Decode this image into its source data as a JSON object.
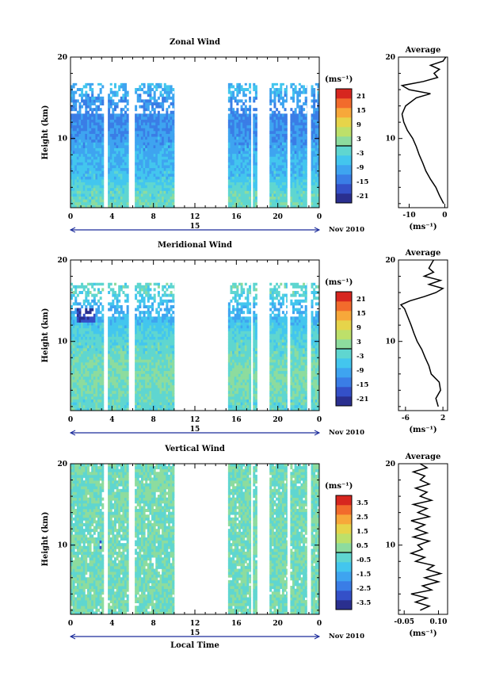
{
  "chart_data": [
    {
      "type": "heatmap",
      "title": "Zonal Wind",
      "ylabel": "Height (km)",
      "x_ticks": [
        "0",
        "4",
        "8",
        "12",
        "16",
        "20",
        "0"
      ],
      "y_ticks": [
        "20",
        "10"
      ],
      "xlim": [
        0,
        24
      ],
      "ylim": [
        1.5,
        20
      ],
      "date_label": "15",
      "date_suffix": "Nov 2010",
      "colorbar": {
        "unit": "(ms⁻¹)",
        "ticks": [
          "21",
          "15",
          "9",
          "3",
          "-3",
          "-9",
          "-15",
          "-21"
        ],
        "range": [
          -24,
          24
        ]
      },
      "observed_hours": [
        [
          0,
          3.2
        ],
        [
          3.6,
          5.6
        ],
        [
          6.2,
          10
        ],
        [
          15.2,
          17.4
        ],
        [
          17.6,
          18
        ],
        [
          19.2,
          20.9
        ],
        [
          21.2,
          22.8
        ],
        [
          23.2,
          24
        ]
      ],
      "data_top_km": 16.8,
      "profile_by_height": {
        "height_km": [
          2,
          3,
          4,
          5,
          6,
          7,
          8,
          9,
          10,
          11,
          12,
          13,
          14,
          15,
          16
        ],
        "u_ms": [
          -1,
          -2,
          -3,
          -6,
          -7,
          -8,
          -9,
          -10,
          -11,
          -12,
          -13,
          -13,
          -12,
          -10,
          -8
        ]
      },
      "average": {
        "title": "Average",
        "xlabel": "(ms⁻¹)",
        "x_ticks": [
          "-10",
          "0"
        ],
        "xlim": [
          -13,
          0.8
        ],
        "y_ticks": [
          "20",
          "10"
        ],
        "height_km": [
          2,
          3,
          4,
          5,
          6,
          7,
          8,
          9,
          10,
          11,
          12,
          13,
          14,
          15,
          15.5,
          16,
          16.5,
          17,
          17.5,
          18,
          18.5,
          19,
          19.5,
          20
        ],
        "values": [
          -0.3,
          -1.5,
          -2.5,
          -4,
          -5.3,
          -6.2,
          -7.2,
          -8,
          -9,
          -10.5,
          -11.5,
          -12,
          -11,
          -8,
          -4,
          -10,
          -12,
          -6,
          -2,
          -3,
          -1.5,
          -4,
          -0.5,
          0.3
        ]
      }
    },
    {
      "type": "heatmap",
      "title": "Meridional Wind",
      "ylabel": "Height (km)",
      "x_ticks": [
        "0",
        "4",
        "8",
        "12",
        "16",
        "20",
        "0"
      ],
      "y_ticks": [
        "20",
        "10"
      ],
      "xlim": [
        0,
        24
      ],
      "ylim": [
        1.5,
        20
      ],
      "date_label": "15",
      "date_suffix": "Nov 2010",
      "colorbar": {
        "unit": "(ms⁻¹)",
        "ticks": [
          "21",
          "15",
          "9",
          "3",
          "-3",
          "-9",
          "-15",
          "-21"
        ],
        "range": [
          -24,
          24
        ]
      },
      "observed_hours": [
        [
          0,
          3.2
        ],
        [
          3.6,
          5.6
        ],
        [
          6.2,
          10
        ],
        [
          15.2,
          17.4
        ],
        [
          17.6,
          18
        ],
        [
          19.2,
          20.9
        ],
        [
          21.2,
          22.8
        ],
        [
          23.2,
          24
        ]
      ],
      "data_top_km": 17.2,
      "profile_by_height": {
        "height_km": [
          2,
          3,
          4,
          5,
          6,
          7,
          8,
          9,
          10,
          11,
          12,
          13,
          14,
          15,
          16
        ],
        "v_ms": [
          -2,
          -1,
          0,
          1,
          1,
          0,
          -1,
          -2,
          -3,
          -4,
          -6,
          -8,
          -9,
          -5,
          -2
        ]
      },
      "average": {
        "title": "Average",
        "xlabel": "(ms⁻¹)",
        "x_ticks": [
          "-6",
          "2"
        ],
        "xlim": [
          -7.5,
          3
        ],
        "y_ticks": [
          "20",
          "10"
        ],
        "height_km": [
          2,
          3,
          4,
          5,
          6,
          7,
          8,
          9,
          10,
          11,
          12,
          13,
          14,
          14.5,
          15,
          15.5,
          16,
          16.5,
          17,
          17.5,
          18,
          18.5,
          19,
          20
        ],
        "values": [
          1,
          0.5,
          1.5,
          1.2,
          -0.5,
          -1,
          -1.8,
          -2.5,
          -3.5,
          -4.2,
          -4.8,
          -5.5,
          -6.2,
          -7,
          -5,
          -2,
          0.5,
          2,
          -1,
          1.5,
          -2,
          0,
          -1,
          0
        ]
      }
    },
    {
      "type": "heatmap",
      "title": "Vertical Wind",
      "ylabel": "Height (km)",
      "xlabel": "Local Time",
      "x_ticks": [
        "0",
        "4",
        "8",
        "12",
        "16",
        "20",
        "0"
      ],
      "y_ticks": [
        "20",
        "10"
      ],
      "xlim": [
        0,
        24
      ],
      "ylim": [
        1.5,
        20
      ],
      "date_label": "15",
      "date_suffix": "Nov 2010",
      "colorbar": {
        "unit": "(ms⁻¹)",
        "ticks": [
          "3.5",
          "2.5",
          "1.5",
          "0.5",
          "-0.5",
          "-1.5",
          "-2.5",
          "-3.5"
        ],
        "range": [
          -4,
          4
        ]
      },
      "observed_hours": [
        [
          0,
          3.2
        ],
        [
          3.6,
          5.6
        ],
        [
          6.2,
          10
        ],
        [
          15.2,
          17.4
        ],
        [
          17.6,
          18
        ],
        [
          19.2,
          20.9
        ],
        [
          21.2,
          22.8
        ],
        [
          23.2,
          24
        ]
      ],
      "data_top_km": 20,
      "average": {
        "title": "Average",
        "xlabel": "(ms⁻¹)",
        "x_ticks": [
          "-0.05",
          "0.10"
        ],
        "xlim": [
          -0.075,
          0.14
        ],
        "y_ticks": [
          "20",
          "10"
        ],
        "height_km": [
          2,
          2.5,
          3,
          3.5,
          4,
          4.5,
          5,
          5.5,
          6,
          6.5,
          7,
          7.5,
          8,
          8.5,
          9,
          9.5,
          10,
          10.5,
          11,
          11.5,
          12,
          12.5,
          13,
          13.5,
          14,
          14.5,
          15,
          15.5,
          16,
          16.5,
          17,
          17.5,
          18,
          18.5,
          19,
          19.5,
          20
        ],
        "values": [
          0.02,
          0.06,
          0.0,
          0.05,
          -0.02,
          0.07,
          0.03,
          0.1,
          0.04,
          0.11,
          0.05,
          0.08,
          0.0,
          0.04,
          -0.02,
          0.03,
          0.01,
          0.06,
          -0.01,
          0.05,
          0.0,
          0.04,
          -0.02,
          0.06,
          0.01,
          0.05,
          -0.01,
          0.07,
          0.02,
          0.05,
          0.0,
          0.06,
          0.02,
          0.04,
          -0.01,
          0.05,
          0.02
        ]
      }
    }
  ],
  "colors": {
    "colormap": [
      "#2a2f8f",
      "#3450c8",
      "#3a7de6",
      "#3ea4f0",
      "#43c6ee",
      "#5fd6d0",
      "#8ddc9e",
      "#bde06a",
      "#e6d44a",
      "#f7a83a",
      "#f26b2c",
      "#d7261f"
    ]
  }
}
